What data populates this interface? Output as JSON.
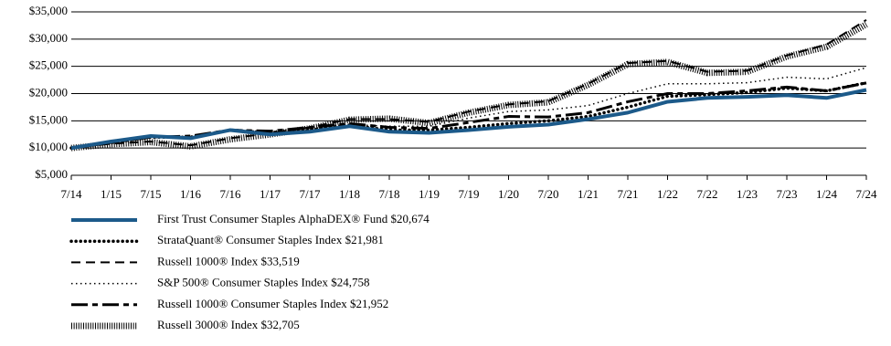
{
  "chart_data": {
    "type": "line",
    "x": [
      "7/14",
      "1/15",
      "7/15",
      "1/16",
      "7/16",
      "1/17",
      "7/17",
      "1/18",
      "7/18",
      "1/19",
      "7/19",
      "1/20",
      "7/20",
      "1/21",
      "7/21",
      "1/22",
      "7/22",
      "1/23",
      "7/23",
      "1/24",
      "7/24"
    ],
    "ylim": [
      5000,
      35000
    ],
    "yticks": [
      {
        "value": 5000,
        "label": "$5,000"
      },
      {
        "value": 10000,
        "label": "$10,000"
      },
      {
        "value": 15000,
        "label": "$15,000"
      },
      {
        "value": 20000,
        "label": "$20,000"
      },
      {
        "value": 25000,
        "label": "$25,000"
      },
      {
        "value": 30000,
        "label": "$30,000"
      },
      {
        "value": 35000,
        "label": "$35,000"
      }
    ],
    "grid": true,
    "series": [
      {
        "name": "First Trust Consumer Staples AlphaDEX® Fund $20,674",
        "color": "#1c5a8a",
        "dash": "solid",
        "values": [
          10000,
          11200,
          12200,
          11800,
          13300,
          12500,
          13000,
          14000,
          13000,
          12800,
          13300,
          13900,
          14300,
          15300,
          16500,
          18500,
          19200,
          19400,
          19700,
          19200,
          20674
        ]
      },
      {
        "name": "StrataQuant® Consumer Staples Index $21,981",
        "color": "#000000",
        "dash": "dot",
        "values": [
          10000,
          11000,
          12000,
          12000,
          13300,
          12800,
          13300,
          14200,
          13300,
          13300,
          13800,
          14500,
          15000,
          15800,
          17500,
          19500,
          19800,
          20200,
          21000,
          20500,
          21981
        ]
      },
      {
        "name": "Russell 1000® Index $33,519",
        "color": "#000000",
        "dash": "dash",
        "values": [
          10000,
          10800,
          11200,
          10500,
          11800,
          12700,
          13800,
          15300,
          15300,
          14800,
          16700,
          18000,
          18600,
          21800,
          25600,
          26000,
          24000,
          24200,
          27000,
          29000,
          33519
        ]
      },
      {
        "name": "S&P 500® Consumer Staples Index $24,758",
        "color": "#000000",
        "dash": "finedot",
        "values": [
          10000,
          11000,
          12000,
          12000,
          13300,
          13000,
          13600,
          14300,
          14000,
          14000,
          15500,
          16700,
          17000,
          17800,
          20000,
          21800,
          21800,
          22000,
          23000,
          22700,
          24758
        ]
      },
      {
        "name": "Russell 1000® Consumer Staples Index $21,952",
        "color": "#000000",
        "dash": "longdash",
        "values": [
          10000,
          11000,
          12000,
          12200,
          13300,
          13100,
          13800,
          14500,
          13800,
          13600,
          14700,
          15800,
          15700,
          16500,
          18500,
          20000,
          20000,
          20500,
          21200,
          20500,
          21952
        ]
      },
      {
        "name": "Russell 3000® Index $32,705",
        "color": "#000000",
        "dash": "hatch",
        "values": [
          10000,
          10700,
          11100,
          10300,
          11600,
          12500,
          13600,
          15200,
          15400,
          14600,
          16500,
          17900,
          18400,
          21600,
          25400,
          25800,
          23800,
          24000,
          26800,
          28600,
          32705
        ]
      }
    ]
  }
}
